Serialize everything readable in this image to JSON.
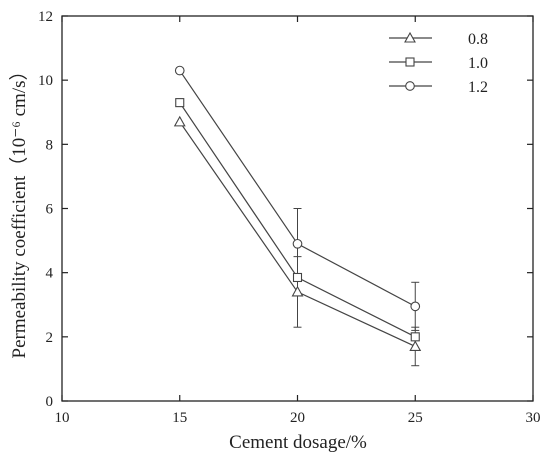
{
  "chart_data": {
    "type": "line",
    "xlabel": "Cement dosage/%",
    "ylabel": "Permeability coefficient（10⁻⁶ cm/s）",
    "xlim": [
      10,
      30
    ],
    "ylim": [
      0,
      12
    ],
    "x_ticks": [
      10,
      15,
      20,
      25,
      30
    ],
    "y_ticks": [
      0,
      2,
      4,
      6,
      8,
      10,
      12
    ],
    "grid": false,
    "legend_position": "top-right",
    "x": [
      15,
      20,
      25
    ],
    "series": [
      {
        "name": "0.8",
        "marker": "triangle",
        "values": [
          8.7,
          3.4,
          1.7
        ],
        "error": [
          0,
          1.1,
          0.6
        ]
      },
      {
        "name": "1.0",
        "marker": "square",
        "values": [
          9.3,
          3.85,
          2.0
        ],
        "error": [
          0,
          0,
          0
        ]
      },
      {
        "name": "1.2",
        "marker": "circle",
        "values": [
          10.3,
          4.9,
          2.95
        ],
        "error": [
          0,
          1.1,
          0.75
        ]
      }
    ],
    "colors": {
      "line": "#444444",
      "axis": "#222222",
      "marker_fill": "#ffffff"
    }
  }
}
